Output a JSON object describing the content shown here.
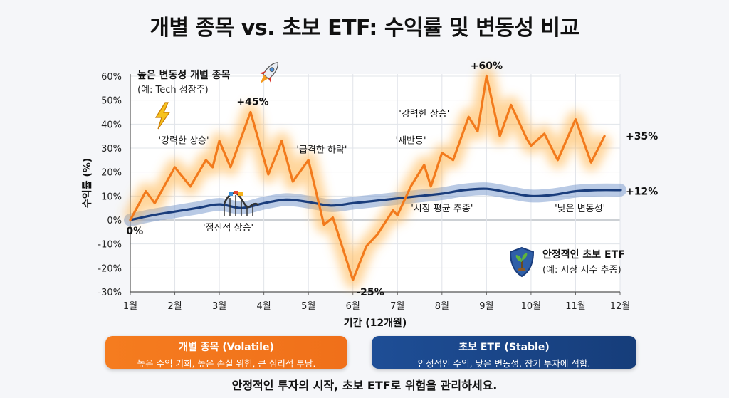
{
  "title": "개별 종목 vs. 초보 ETF: 수익률 및 변동성 비교",
  "colors": {
    "volatile": "#f27a1c",
    "stable": "#1a3d7c",
    "stable_band": "#7f9fd0"
  },
  "chart_data": {
    "type": "line",
    "xlabel": "기간 (12개월)",
    "ylabel": "수익률 (%)",
    "ylim": [
      -30,
      60
    ],
    "y_ticks": [
      "-30%",
      "-20%",
      "-10%",
      "0%",
      "10%",
      "20%",
      "30%",
      "40%",
      "50%",
      "60%"
    ],
    "x_ticks": [
      "1월",
      "2월",
      "3월",
      "4월",
      "5월",
      "6월",
      "7월",
      "8월",
      "9월",
      "10월",
      "11월",
      "12월"
    ],
    "series": [
      {
        "name": "높은 변동성 개별 종목",
        "subtitle": "(예: Tech 성장주)",
        "points": [
          [
            1,
            0
          ],
          [
            1.35,
            12
          ],
          [
            1.55,
            7
          ],
          [
            2,
            22
          ],
          [
            2.35,
            14
          ],
          [
            2.7,
            25
          ],
          [
            2.85,
            22
          ],
          [
            3,
            33
          ],
          [
            3.25,
            22
          ],
          [
            3.7,
            45
          ],
          [
            4.1,
            19
          ],
          [
            4.4,
            33
          ],
          [
            4.65,
            16
          ],
          [
            5,
            25
          ],
          [
            5.35,
            -2
          ],
          [
            5.55,
            1
          ],
          [
            6,
            -25
          ],
          [
            6.3,
            -11
          ],
          [
            6.55,
            -6
          ],
          [
            6.9,
            4
          ],
          [
            7,
            2
          ],
          [
            7.3,
            14
          ],
          [
            7.6,
            23
          ],
          [
            7.75,
            14
          ],
          [
            8,
            28
          ],
          [
            8.25,
            25
          ],
          [
            8.6,
            43
          ],
          [
            8.8,
            37
          ],
          [
            9,
            60
          ],
          [
            9.3,
            35
          ],
          [
            9.55,
            48
          ],
          [
            9.9,
            34
          ],
          [
            10,
            31
          ],
          [
            10.3,
            36
          ],
          [
            10.6,
            25
          ],
          [
            11,
            42
          ],
          [
            11.35,
            24
          ],
          [
            11.65,
            35
          ]
        ]
      },
      {
        "name": "안정적인 초보 ETF",
        "subtitle": "(예: 시장 지수 추종)",
        "points": [
          [
            1,
            0
          ],
          [
            1.5,
            2
          ],
          [
            2,
            3.5
          ],
          [
            2.5,
            5
          ],
          [
            3,
            6.5
          ],
          [
            3.5,
            5
          ],
          [
            4,
            7
          ],
          [
            4.5,
            8.5
          ],
          [
            5,
            7.5
          ],
          [
            5.5,
            6
          ],
          [
            6,
            7
          ],
          [
            6.5,
            8
          ],
          [
            7,
            9
          ],
          [
            7.5,
            10
          ],
          [
            8,
            11
          ],
          [
            8.5,
            12.5
          ],
          [
            9,
            13
          ],
          [
            9.5,
            11.5
          ],
          [
            10,
            10
          ],
          [
            10.5,
            10.5
          ],
          [
            11,
            12
          ],
          [
            11.5,
            12.5
          ],
          [
            12,
            12.5
          ]
        ]
      }
    ],
    "annotations": [
      {
        "text": "+45%",
        "x": 3.75,
        "y": 45,
        "kind": "peak"
      },
      {
        "text": "+60%",
        "x": 9,
        "y": 60,
        "kind": "peak"
      },
      {
        "text": "-25%",
        "x": 6.1,
        "y": -25,
        "kind": "trough"
      },
      {
        "text": "0%",
        "x": 1.1,
        "y": 0,
        "kind": "start"
      },
      {
        "text": "+35%",
        "x": 12,
        "y": 35,
        "kind": "end"
      },
      {
        "text": "+12%",
        "x": 12,
        "y": 12,
        "kind": "end"
      },
      {
        "text": "'강력한 상승'",
        "x": 2.2,
        "y": 32,
        "kind": "note"
      },
      {
        "text": "'급격한 하락'",
        "x": 5.3,
        "y": 28,
        "kind": "note"
      },
      {
        "text": "'강력한 상승'",
        "x": 7.6,
        "y": 43,
        "kind": "note"
      },
      {
        "text": "'재반등'",
        "x": 7.3,
        "y": 32,
        "kind": "note"
      },
      {
        "text": "'점진적 상승'",
        "x": 3.2,
        "y": -4.5,
        "kind": "note"
      },
      {
        "text": "'시장 평균 추종'",
        "x": 8,
        "y": 3.5,
        "kind": "note"
      },
      {
        "text": "'낮은 변동성'",
        "x": 11.1,
        "y": 3.5,
        "kind": "note"
      }
    ]
  },
  "legend": {
    "volatile_title": "개별 종목 (Volatile)",
    "volatile_desc": "높은 수익 기회, 높은 손실 위험, 큰 심리적 부담.",
    "stable_title": "초보 ETF (Stable)",
    "stable_desc": "안정적인 수익, 낮은 변동성, 장기 투자에 적합."
  },
  "icons": {
    "rocket": "rocket-icon",
    "lightning": "lightning-icon",
    "rollercoaster": "rollercoaster-icon",
    "shield": "shield-plant-icon"
  },
  "footer": "안정적인 투자의 시작, 초보 ETF로 위험을 관리하세요."
}
